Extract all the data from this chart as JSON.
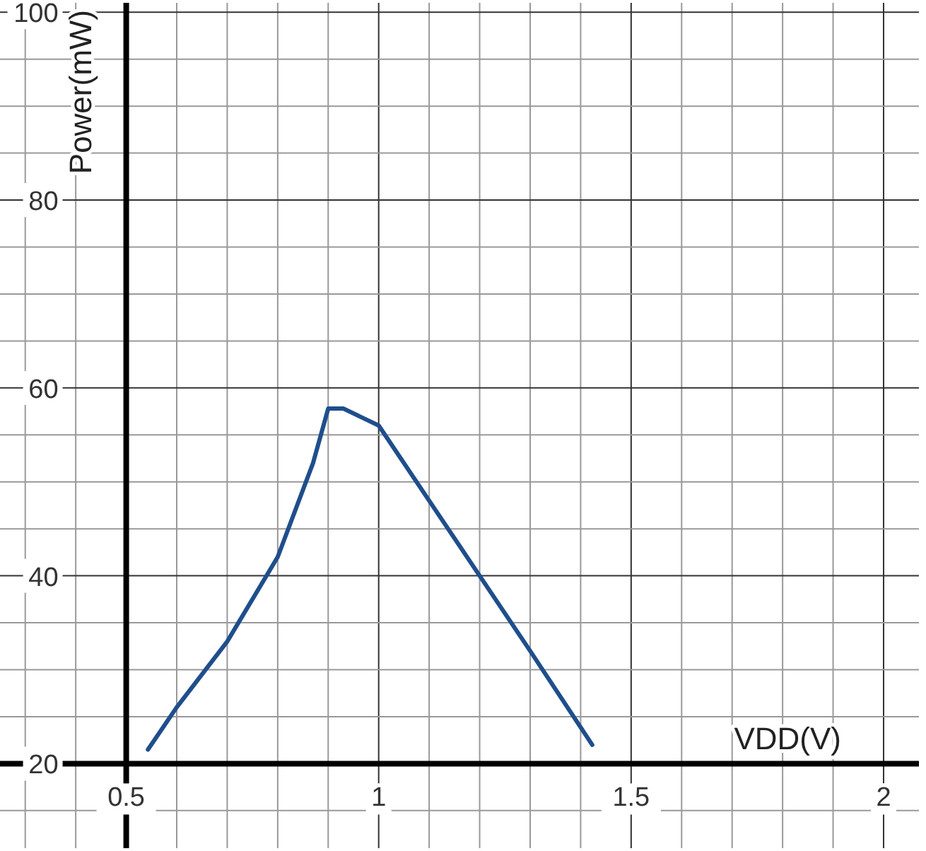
{
  "chart_data": {
    "type": "line",
    "xlabel": "VDD(V)",
    "ylabel": "Power(mW)",
    "x": [
      0.543,
      0.6,
      0.7,
      0.8,
      0.87,
      0.9,
      0.93,
      1.0,
      1.1,
      1.2,
      1.3,
      1.423
    ],
    "series": [
      {
        "color": "#1f4e8c",
        "values": [
          21.5,
          26,
          33,
          42,
          52,
          57.8,
          57.8,
          56,
          48,
          40,
          32,
          22
        ]
      }
    ],
    "xlim": [
      0.25,
      2.07
    ],
    "ylim": [
      11,
      101
    ],
    "xticks": [
      {
        "value": 0.3,
        "label": null
      },
      {
        "value": 0.4,
        "label": null
      },
      0.5,
      {
        "value": 0.6,
        "label": null
      },
      {
        "value": 0.7,
        "label": null
      },
      {
        "value": 0.8,
        "label": null
      },
      {
        "value": 0.9,
        "label": null
      },
      1,
      {
        "value": 1.1,
        "label": null
      },
      {
        "value": 1.2,
        "label": null
      },
      {
        "value": 1.3,
        "label": null
      },
      {
        "value": 1.4,
        "label": null
      },
      1.5,
      {
        "value": 1.6,
        "label": null
      },
      {
        "value": 1.7,
        "label": null
      },
      {
        "value": 1.8,
        "label": null
      },
      {
        "value": 1.9,
        "label": null
      },
      2
    ],
    "yticks": [
      {
        "value": 15,
        "label": null
      },
      20,
      {
        "value": 25,
        "label": null
      },
      {
        "value": 30,
        "label": null
      },
      {
        "value": 35,
        "label": null
      },
      40,
      {
        "value": 45,
        "label": null
      },
      {
        "value": 50,
        "label": null
      },
      {
        "value": 55,
        "label": null
      },
      60,
      {
        "value": 65,
        "label": null
      },
      {
        "value": 70,
        "label": null
      },
      {
        "value": 75,
        "label": null
      },
      80,
      {
        "value": 85,
        "label": null
      },
      {
        "value": 90,
        "label": null
      },
      {
        "value": 95,
        "label": null
      },
      100
    ],
    "grid": true,
    "marker": "none",
    "line_style": "solid"
  }
}
